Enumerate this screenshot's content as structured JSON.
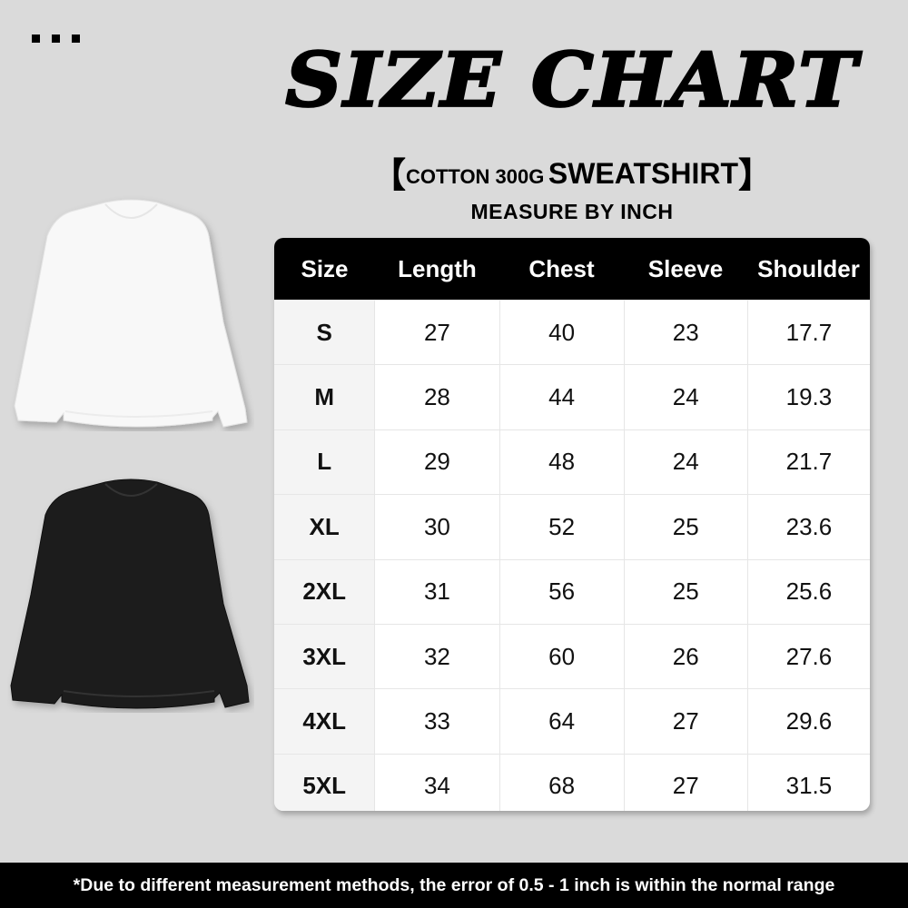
{
  "title": "SIZE CHART",
  "subtitle": {
    "open_bracket": "【",
    "material": "COTTON 300G",
    "product": "SWEATSHIRT",
    "close_bracket": "】"
  },
  "unit_note": "MEASURE BY INCH",
  "table": {
    "headers": [
      "Size",
      "Length",
      "Chest",
      "Sleeve",
      "Shoulder"
    ],
    "rows": [
      [
        "S",
        "27",
        "40",
        "23",
        "17.7"
      ],
      [
        "M",
        "28",
        "44",
        "24",
        "19.3"
      ],
      [
        "L",
        "29",
        "48",
        "24",
        "21.7"
      ],
      [
        "XL",
        "30",
        "52",
        "25",
        "23.6"
      ],
      [
        "2XL",
        "31",
        "56",
        "25",
        "25.6"
      ],
      [
        "3XL",
        "32",
        "60",
        "26",
        "27.6"
      ],
      [
        "4XL",
        "33",
        "64",
        "27",
        "29.6"
      ],
      [
        "5XL",
        "34",
        "68",
        "27",
        "31.5"
      ]
    ]
  },
  "products": [
    {
      "color": "white",
      "hex": "#f7f7f7"
    },
    {
      "color": "black",
      "hex": "#1c1c1c"
    }
  ],
  "footer_note": "*Due to different measurement methods, the error of 0.5 - 1 inch is within the normal range",
  "colors": {
    "background": "#dadada",
    "header_bg": "#000000",
    "footer_bg": "#000000"
  }
}
